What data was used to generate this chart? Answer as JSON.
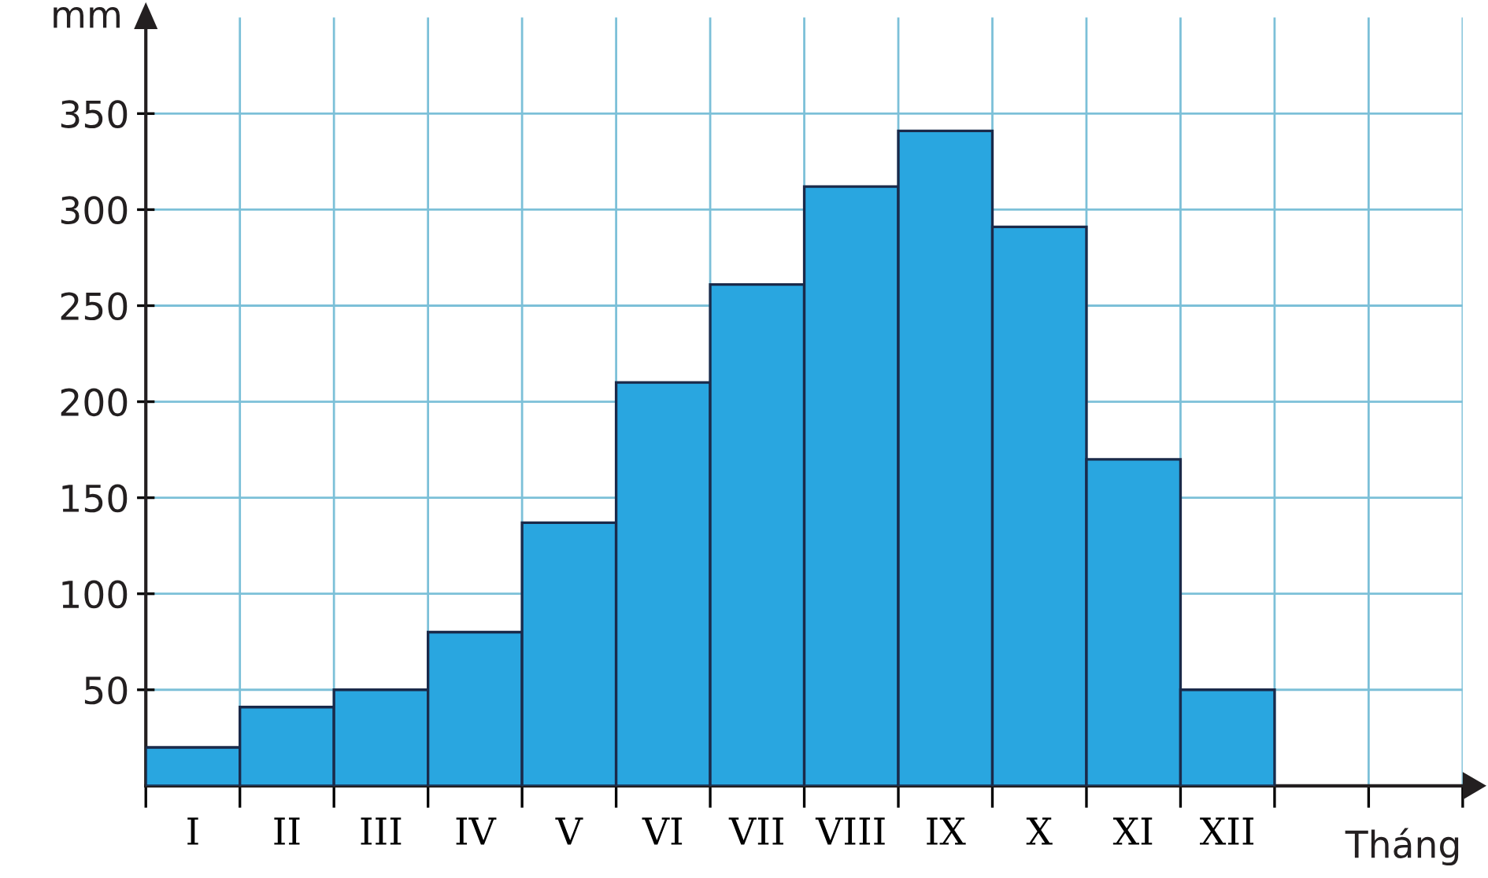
{
  "chart_data": {
    "type": "bar",
    "xlabel": "Tháng",
    "ylabel": "mm",
    "categories": [
      "I",
      "II",
      "III",
      "IV",
      "V",
      "VI",
      "VII",
      "VIII",
      "IX",
      "X",
      "XI",
      "XII"
    ],
    "values": [
      20,
      41,
      50,
      80,
      137,
      210,
      261,
      312,
      341,
      291,
      170,
      50
    ],
    "color": "#29a6e0",
    "ylim": [
      0,
      400
    ],
    "yticks": [
      50,
      100,
      150,
      200,
      250,
      300,
      350
    ],
    "grid": true
  }
}
